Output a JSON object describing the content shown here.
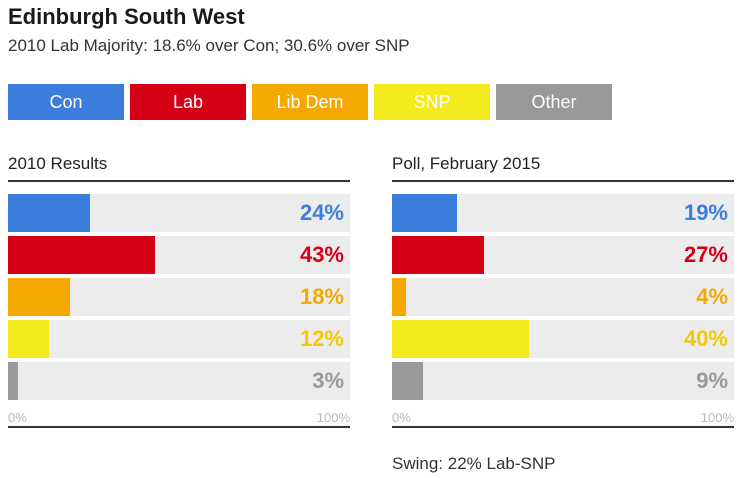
{
  "title": "Edinburgh South West",
  "subtitle": "2010 Lab Majority: 18.6% over Con; 30.6% over SNP",
  "legend": [
    {
      "label": "Con",
      "color": "#3b7ddd"
    },
    {
      "label": "Lab",
      "color": "#d50016"
    },
    {
      "label": "Lib Dem",
      "color": "#f5a800"
    },
    {
      "label": "SNP",
      "color": "#f4ea1e"
    },
    {
      "label": "Other",
      "color": "#999999"
    }
  ],
  "label_colors": [
    "#3b7ddd",
    "#d50016",
    "#f5a800",
    "#f5c800",
    "#999999"
  ],
  "footnote": "Swing: 22% Lab-SNP",
  "chart_data": [
    {
      "type": "bar",
      "title": "2010 Results",
      "categories": [
        "Con",
        "Lab",
        "Lib Dem",
        "SNP",
        "Other"
      ],
      "values": [
        24,
        43,
        18,
        12,
        3
      ],
      "value_labels": [
        "24%",
        "43%",
        "18%",
        "12%",
        "3%"
      ],
      "xlim": [
        0,
        100
      ],
      "tick_labels": [
        "0%",
        "100%"
      ]
    },
    {
      "type": "bar",
      "title": "Poll, February 2015",
      "categories": [
        "Con",
        "Lab",
        "Lib Dem",
        "SNP",
        "Other"
      ],
      "values": [
        19,
        27,
        4,
        40,
        9
      ],
      "value_labels": [
        "19%",
        "27%",
        "4%",
        "40%",
        "9%"
      ],
      "xlim": [
        0,
        100
      ],
      "tick_labels": [
        "0%",
        "100%"
      ]
    }
  ]
}
